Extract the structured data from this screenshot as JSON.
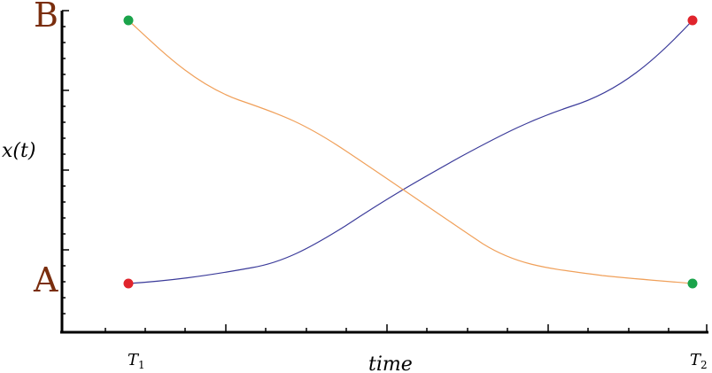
{
  "labels": {
    "top": "B",
    "bottom": "A",
    "ylabel": "x(t)",
    "xlabel": "time",
    "t1": "T",
    "t1_sub": "1",
    "t2": "T",
    "t2_sub": "2"
  },
  "colors": {
    "axis": "#000000",
    "label_brown": "#7a2e0e",
    "blue_curve": "#3b3b9a",
    "orange_curve": "#f0a05a",
    "red_dot": "#e0242c",
    "green_dot": "#1aa34a"
  }
}
